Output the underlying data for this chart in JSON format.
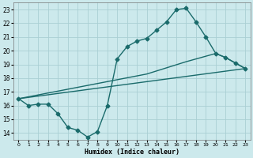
{
  "xlabel": "Humidex (Indice chaleur)",
  "bg_color": "#cce9ec",
  "grid_color": "#aacfd4",
  "line_color": "#1a6b6b",
  "xlim": [
    -0.5,
    23.5
  ],
  "ylim": [
    13.5,
    23.5
  ],
  "xticks": [
    0,
    1,
    2,
    3,
    4,
    5,
    6,
    7,
    8,
    9,
    10,
    11,
    12,
    13,
    14,
    15,
    16,
    17,
    18,
    19,
    20,
    21,
    22,
    23
  ],
  "yticks": [
    14,
    15,
    16,
    17,
    18,
    19,
    20,
    21,
    22,
    23
  ],
  "line1_x": [
    0,
    1,
    2,
    3,
    4,
    5,
    6,
    7,
    8,
    9,
    10,
    11,
    12,
    13,
    14,
    15,
    16,
    17,
    18,
    19,
    20,
    21,
    22,
    23
  ],
  "line1_y": [
    16.5,
    16.0,
    16.1,
    16.1,
    15.4,
    14.4,
    14.2,
    13.7,
    14.1,
    16.0,
    19.4,
    20.3,
    20.7,
    20.9,
    21.5,
    22.1,
    23.0,
    23.1,
    22.1,
    21.0,
    19.8,
    19.5,
    19.1,
    18.7
  ],
  "line2_x": [
    0,
    23
  ],
  "line2_y": [
    16.5,
    18.7
  ],
  "line3_x": [
    0,
    13,
    17,
    20,
    21,
    23
  ],
  "line3_y": [
    16.5,
    18.3,
    19.2,
    19.8,
    19.5,
    18.7
  ],
  "line_width": 1.0,
  "marker_style": "D",
  "marker_size": 2.5
}
